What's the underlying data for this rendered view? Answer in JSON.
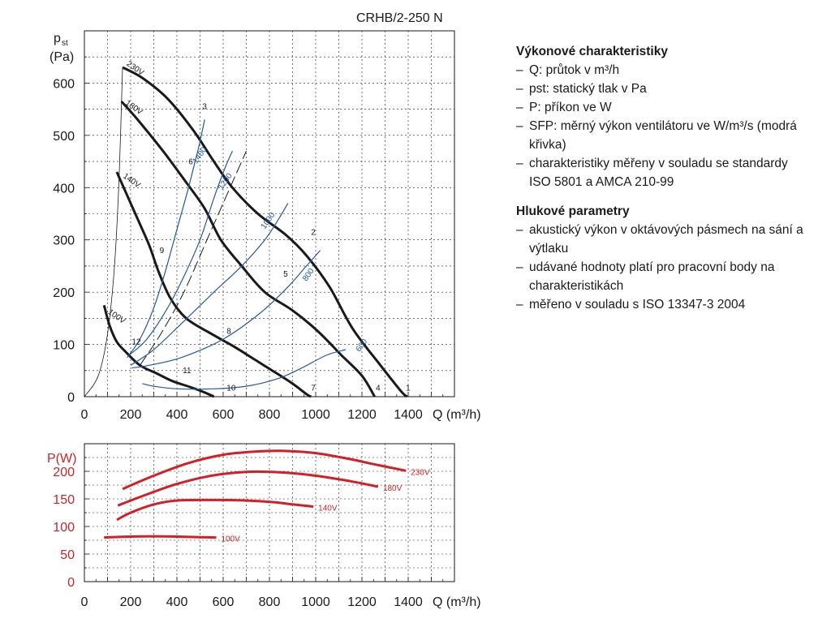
{
  "title": "CRHB/2-250 N",
  "legend": {
    "performance": {
      "heading": "Výkonové charakteristiky",
      "items": [
        "Q: průtok v m³/h",
        "pst: statický tlak v Pa",
        "P: příkon ve W",
        "SFP: měrný výkon ventilátoru ve W/m³/s (modrá křivka)",
        "charakteristiky měřeny v souladu se stan­dardy ISO 5801 a AMCA 210-99"
      ]
    },
    "noise": {
      "heading": "Hlukové parametry",
      "items": [
        "akustický výkon v oktávových pásmech na sání a výtlaku",
        "udávané hodnoty platí pro pracovní body na charakteristikách",
        "měřeno v souladu s ISO 13347-3 2004"
      ]
    }
  },
  "colors": {
    "curve": "#1a1a1a",
    "sfp": "#2458a6",
    "power": "#d41f26",
    "grid": "#1a1a1a"
  },
  "chart_data": [
    {
      "type": "line",
      "title": "",
      "xlabel": "Q (m³/h)",
      "ylabel_main": "p",
      "ylabel_sub": "st",
      "ylabel_unit": "(Pa)",
      "xlim": [
        0,
        1600
      ],
      "ylim": [
        0,
        700
      ],
      "xticks": [
        0,
        200,
        400,
        600,
        800,
        1000,
        1200,
        1400
      ],
      "yticks": [
        0,
        100,
        200,
        300,
        400,
        500,
        600
      ],
      "series": [
        {
          "name": "230V",
          "style": "fan",
          "points": [
            [
              165,
              630
            ],
            [
              250,
              610
            ],
            [
              360,
              570
            ],
            [
              470,
              510
            ],
            [
              560,
              450
            ],
            [
              640,
              400
            ],
            [
              750,
              350
            ],
            [
              870,
              310
            ],
            [
              960,
              270
            ],
            [
              1060,
              210
            ],
            [
              1160,
              130
            ],
            [
              1280,
              60
            ],
            [
              1370,
              10
            ],
            [
              1395,
              0
            ]
          ]
        },
        {
          "name": "180V",
          "style": "fan",
          "points": [
            [
              160,
              565
            ],
            [
              230,
              530
            ],
            [
              340,
              470
            ],
            [
              440,
              410
            ],
            [
              520,
              360
            ],
            [
              590,
              300
            ],
            [
              680,
              250
            ],
            [
              780,
              200
            ],
            [
              900,
              165
            ],
            [
              1010,
              125
            ],
            [
              1110,
              80
            ],
            [
              1200,
              40
            ],
            [
              1255,
              0
            ]
          ]
        },
        {
          "name": "140V",
          "style": "fan",
          "points": [
            [
              140,
              430
            ],
            [
              180,
              390
            ],
            [
              230,
              340
            ],
            [
              280,
              290
            ],
            [
              320,
              240
            ],
            [
              370,
              190
            ],
            [
              440,
              150
            ],
            [
              550,
              120
            ],
            [
              650,
              95
            ],
            [
              740,
              70
            ],
            [
              830,
              45
            ],
            [
              900,
              25
            ],
            [
              960,
              5
            ],
            [
              980,
              0
            ]
          ]
        },
        {
          "name": "100V",
          "style": "fan",
          "points": [
            [
              85,
              175
            ],
            [
              110,
              135
            ],
            [
              140,
              105
            ],
            [
              180,
              85
            ],
            [
              240,
              60
            ],
            [
              310,
              45
            ],
            [
              380,
              30
            ],
            [
              460,
              18
            ],
            [
              520,
              8
            ],
            [
              560,
              0
            ]
          ]
        },
        {
          "name": "",
          "style": "system",
          "points": [
            [
              0,
              0
            ],
            [
              60,
              40
            ],
            [
              100,
              120
            ],
            [
              130,
              250
            ],
            [
              150,
              420
            ],
            [
              165,
              630
            ]
          ]
        },
        {
          "name": "",
          "style": "dash",
          "points": [
            [
              240,
              60
            ],
            [
              330,
              120
            ],
            [
              430,
              200
            ],
            [
              530,
              300
            ],
            [
              630,
              400
            ],
            [
              700,
              470
            ]
          ]
        },
        {
          "name": "",
          "style": "sfp",
          "points": [
            [
              205,
              55
            ],
            [
              280,
              60
            ],
            [
              420,
              75
            ],
            [
              600,
              110
            ],
            [
              760,
              160
            ],
            [
              880,
              210
            ],
            [
              960,
              250
            ],
            [
              1020,
              280
            ]
          ]
        },
        {
          "name": "",
          "style": "sfp",
          "points": [
            [
              200,
              60
            ],
            [
              300,
              90
            ],
            [
              420,
              140
            ],
            [
              560,
              200
            ],
            [
              680,
              250
            ],
            [
              780,
              300
            ],
            [
              840,
              340
            ],
            [
              880,
              370
            ]
          ]
        },
        {
          "name": "",
          "style": "sfp",
          "points": [
            [
              195,
              80
            ],
            [
              270,
              110
            ],
            [
              360,
              170
            ],
            [
              430,
              230
            ],
            [
              500,
              300
            ],
            [
              560,
              380
            ],
            [
              610,
              440
            ],
            [
              640,
              470
            ]
          ]
        },
        {
          "name": "",
          "style": "sfp",
          "points": [
            [
              185,
              75
            ],
            [
              240,
              110
            ],
            [
              300,
              170
            ],
            [
              350,
              240
            ],
            [
              400,
              320
            ],
            [
              450,
              400
            ],
            [
              490,
              470
            ],
            [
              520,
              530
            ]
          ]
        },
        {
          "name": "",
          "style": "sfp",
          "points": [
            [
              250,
              25
            ],
            [
              300,
              20
            ],
            [
              400,
              15
            ],
            [
              560,
              15
            ],
            [
              700,
              20
            ],
            [
              840,
              35
            ],
            [
              940,
              55
            ],
            [
              1050,
              80
            ],
            [
              1130,
              90
            ]
          ]
        }
      ],
      "rpm_labels": [
        {
          "text": "1400",
          "x": 485,
          "y": 445
        },
        {
          "text": "1200",
          "x": 595,
          "y": 395
        },
        {
          "text": "1000",
          "x": 780,
          "y": 320
        },
        {
          "text": "800",
          "x": 960,
          "y": 220
        },
        {
          "text": "600",
          "x": 1190,
          "y": 85
        }
      ],
      "voltage_labels": [
        {
          "text": "230V",
          "x": 180,
          "y": 635
        },
        {
          "text": "180V",
          "x": 175,
          "y": 560
        },
        {
          "text": "140V",
          "x": 165,
          "y": 420
        },
        {
          "text": "100V",
          "x": 100,
          "y": 160
        }
      ],
      "point_labels": [
        {
          "text": "1",
          "x": 1390,
          "y": 12
        },
        {
          "text": "2",
          "x": 980,
          "y": 310
        },
        {
          "text": "3",
          "x": 510,
          "y": 550
        },
        {
          "text": "4",
          "x": 1260,
          "y": 12
        },
        {
          "text": "5",
          "x": 860,
          "y": 230
        },
        {
          "text": "6",
          "x": 450,
          "y": 445
        },
        {
          "text": "7",
          "x": 980,
          "y": 12
        },
        {
          "text": "8",
          "x": 615,
          "y": 120
        },
        {
          "text": "9",
          "x": 325,
          "y": 275
        },
        {
          "text": "10",
          "x": 615,
          "y": 12
        },
        {
          "text": "11",
          "x": 425,
          "y": 45
        },
        {
          "text": "12",
          "x": 205,
          "y": 100
        }
      ]
    },
    {
      "type": "line",
      "title": "",
      "ylabel": "P(W)",
      "xlabel": "Q (m³/h)",
      "xlim": [
        0,
        1600
      ],
      "ylim": [
        0,
        250
      ],
      "xticks": [
        0,
        200,
        400,
        600,
        800,
        1000,
        1200,
        1400
      ],
      "yticks": [
        0,
        50,
        100,
        150,
        200
      ],
      "series": [
        {
          "name": "230V",
          "points": [
            [
              165,
              168
            ],
            [
              300,
              192
            ],
            [
              450,
              215
            ],
            [
              600,
              230
            ],
            [
              750,
              236
            ],
            [
              850,
              237
            ],
            [
              1000,
              233
            ],
            [
              1150,
              222
            ],
            [
              1250,
              213
            ],
            [
              1390,
              201
            ]
          ]
        },
        {
          "name": "180V",
          "points": [
            [
              145,
              138
            ],
            [
              250,
              155
            ],
            [
              400,
              177
            ],
            [
              550,
              192
            ],
            [
              700,
              199
            ],
            [
              850,
              198
            ],
            [
              1000,
              192
            ],
            [
              1150,
              182
            ],
            [
              1270,
              172
            ]
          ]
        },
        {
          "name": "140V",
          "points": [
            [
              140,
              112
            ],
            [
              200,
              125
            ],
            [
              300,
              140
            ],
            [
              400,
              147
            ],
            [
              560,
              148
            ],
            [
              700,
              147
            ],
            [
              820,
              144
            ],
            [
              900,
              140
            ],
            [
              990,
              136
            ]
          ]
        },
        {
          "name": "100V",
          "points": [
            [
              85,
              80
            ],
            [
              150,
              81
            ],
            [
              250,
              82
            ],
            [
              350,
              82
            ],
            [
              450,
              81
            ],
            [
              570,
              80
            ]
          ]
        }
      ]
    }
  ]
}
